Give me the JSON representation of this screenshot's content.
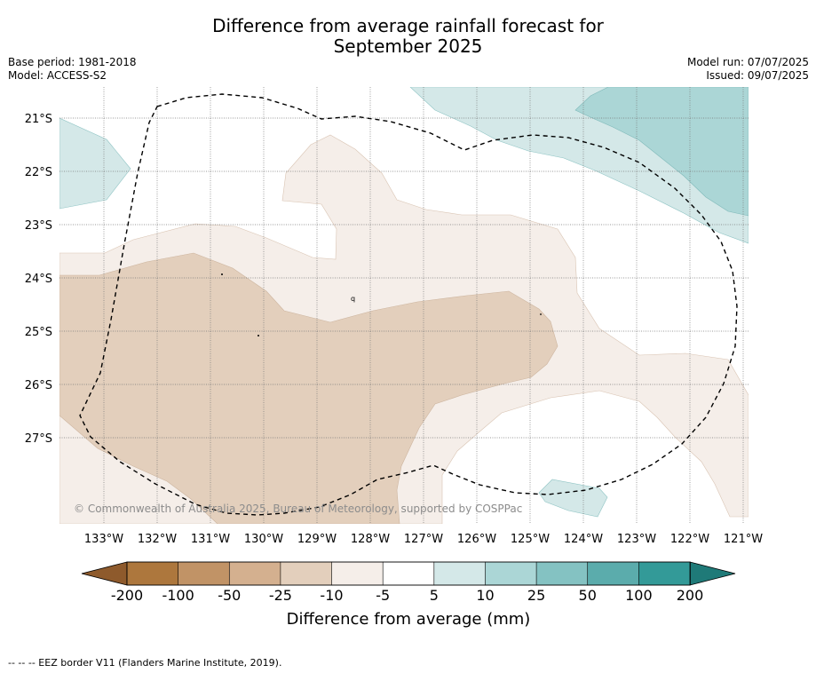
{
  "title": {
    "line1": "Difference from average rainfall forecast for",
    "line2": "September 2025"
  },
  "meta_left": {
    "base_period": "Base period: 1981-2018",
    "model": "Model: ACCESS-S2"
  },
  "meta_right": {
    "model_run": "Model run: 07/07/2025",
    "issued": "Issued: 09/07/2025"
  },
  "map": {
    "latitude_labels": [
      "21°S",
      "22°S",
      "23°S",
      "24°S",
      "25°S",
      "26°S",
      "27°S"
    ],
    "longitude_labels": [
      "133°W",
      "132°W",
      "131°W",
      "130°W",
      "129°W",
      "128°W",
      "127°W",
      "126°W",
      "125°W",
      "124°W",
      "123°W",
      "122°W",
      "121°W"
    ],
    "copyright": "© Commonwealth of Australia 2025, Bureau of Meteorology, supported by COSPPac",
    "island_marker": "q"
  },
  "colorbar": {
    "ticks": [
      "-200",
      "-100",
      "-50",
      "-25",
      "-10",
      "-5",
      "5",
      "10",
      "25",
      "50",
      "100",
      "200"
    ],
    "colors": [
      "#ad773d",
      "#c19366",
      "#d4b08f",
      "#e3cfbc",
      "#f5eee9",
      "#ffffff",
      "#d4e8e8",
      "#abd6d6",
      "#84c2c2",
      "#5bacac",
      "#339a98"
    ],
    "under_color": "#8e5a2c",
    "over_color": "#1f7a78",
    "label": "Difference from average (mm)"
  },
  "footer": {
    "legend_text": "--  --  -- EEZ border V11 (Flanders Marine Institute, 2019)."
  }
}
